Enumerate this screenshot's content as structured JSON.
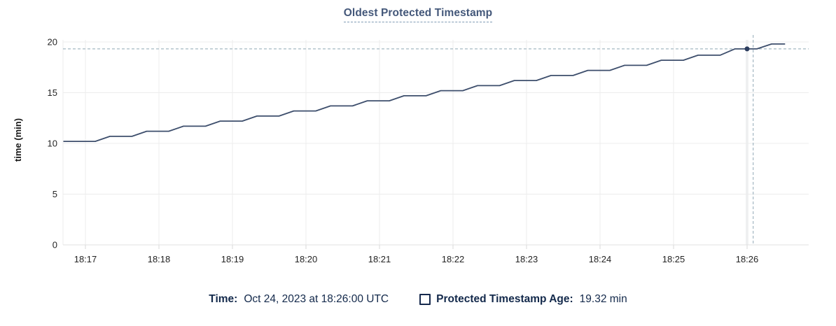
{
  "title": "Oldest Protected Timestamp",
  "legend": {
    "time_label": "Time:",
    "time_value": "Oct 24, 2023 at 18:26:00 UTC",
    "series_label": "Protected Timestamp Age:",
    "series_value": "19.32 min"
  },
  "colors": {
    "line": "#3d4e6c",
    "marker": "#2b3c5e",
    "crosshair": "#8fa7b5",
    "grid": "#ececec",
    "axis_line": "#e0e0e0",
    "tick_mark": "#d9d9d9",
    "cursor_column": "#f0f2f3",
    "tick_text": "#242424",
    "title_text": "#44587a",
    "legend_text": "#13294b"
  },
  "chart_data": {
    "type": "line",
    "title": "Oldest Protected Timestamp",
    "ylabel": "time (min)",
    "xlabel": "",
    "x_tick_labels": [
      "18:17",
      "18:18",
      "18:19",
      "18:20",
      "18:21",
      "18:22",
      "18:23",
      "18:24",
      "18:25",
      "18:26"
    ],
    "y_ticks": [
      0,
      5,
      10,
      15,
      20
    ],
    "ylim": [
      0,
      20.7
    ],
    "x_range_seconds_from_1817": [
      -18,
      590
    ],
    "grid": true,
    "legend_position": "bottom",
    "series": [
      {
        "name": "Protected Timestamp Age",
        "unit": "min",
        "points_seconds_value": [
          [
            -18,
            10.2
          ],
          [
            8,
            10.2
          ],
          [
            20,
            10.7
          ],
          [
            38,
            10.7
          ],
          [
            50,
            11.2
          ],
          [
            68,
            11.2
          ],
          [
            80,
            11.7
          ],
          [
            98,
            11.7
          ],
          [
            110,
            12.2
          ],
          [
            128,
            12.2
          ],
          [
            140,
            12.7
          ],
          [
            158,
            12.7
          ],
          [
            170,
            13.2
          ],
          [
            188,
            13.2
          ],
          [
            200,
            13.7
          ],
          [
            218,
            13.7
          ],
          [
            230,
            14.2
          ],
          [
            248,
            14.2
          ],
          [
            260,
            14.7
          ],
          [
            278,
            14.7
          ],
          [
            290,
            15.2
          ],
          [
            308,
            15.2
          ],
          [
            320,
            15.7
          ],
          [
            338,
            15.7
          ],
          [
            350,
            16.2
          ],
          [
            368,
            16.2
          ],
          [
            380,
            16.7
          ],
          [
            398,
            16.7
          ],
          [
            410,
            17.2
          ],
          [
            428,
            17.2
          ],
          [
            440,
            17.7
          ],
          [
            458,
            17.7
          ],
          [
            470,
            18.2
          ],
          [
            488,
            18.2
          ],
          [
            500,
            18.7
          ],
          [
            518,
            18.7
          ],
          [
            530,
            19.32
          ],
          [
            548,
            19.32
          ],
          [
            560,
            19.8
          ],
          [
            571,
            19.8
          ]
        ]
      }
    ],
    "cursor": {
      "hover_time": "18:26:05",
      "crosshair_x_seconds": 545,
      "crosshair_y_value": 19.32,
      "marker_x_seconds": 540,
      "marker_value": 19.32,
      "highlighted_tick": "18:26"
    }
  }
}
